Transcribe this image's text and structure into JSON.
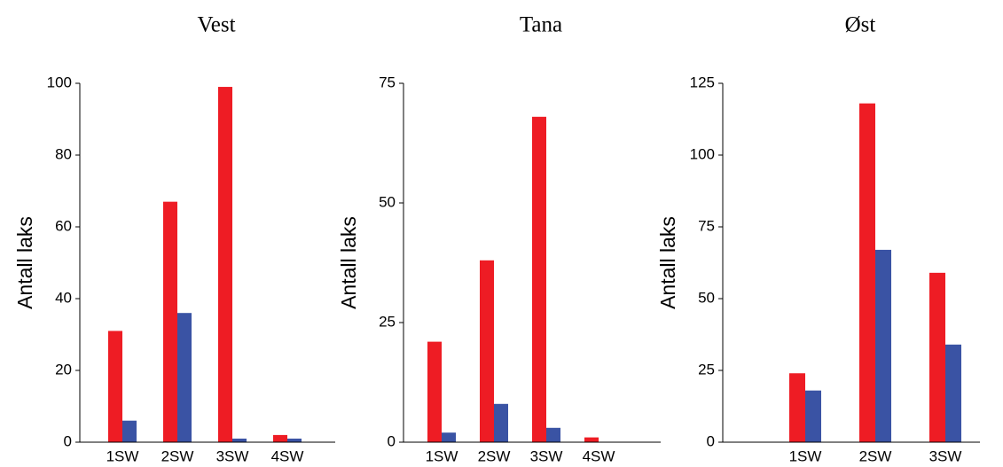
{
  "chart_data": [
    {
      "type": "bar",
      "title": "Vest",
      "y_label": "Antall laks",
      "categories": [
        "1SW",
        "2SW",
        "3SW",
        "4SW"
      ],
      "series": [
        {
          "color": "#ee1c24",
          "values": [
            31,
            67,
            99,
            2
          ]
        },
        {
          "color": "#3a53a4",
          "values": [
            6,
            36,
            1,
            1
          ]
        }
      ],
      "ylim": [
        0,
        100
      ],
      "yticks": [
        0,
        20,
        40,
        60,
        80,
        100
      ]
    },
    {
      "type": "bar",
      "title": "Tana",
      "y_label": "Antall laks",
      "categories": [
        "1SW",
        "2SW",
        "3SW",
        "4SW"
      ],
      "series": [
        {
          "color": "#ee1c24",
          "values": [
            21,
            38,
            68,
            1
          ]
        },
        {
          "color": "#3a53a4",
          "values": [
            2,
            8,
            3,
            0
          ]
        }
      ],
      "ylim": [
        0,
        75
      ],
      "yticks": [
        0,
        25,
        50,
        75
      ]
    },
    {
      "type": "bar",
      "title": "Øst",
      "y_label": "Antall laks",
      "categories": [
        "1SW",
        "2SW",
        "3SW"
      ],
      "series": [
        {
          "color": "#ee1c24",
          "values": [
            24,
            118,
            59
          ]
        },
        {
          "color": "#3a53a4",
          "values": [
            18,
            67,
            34
          ]
        }
      ],
      "ylim": [
        0,
        125
      ],
      "yticks": [
        0,
        25,
        50,
        75,
        100,
        125
      ]
    }
  ]
}
